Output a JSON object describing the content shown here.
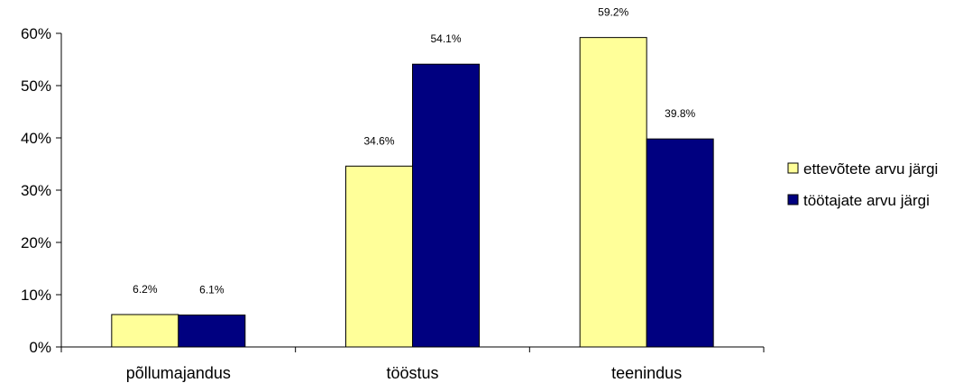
{
  "chart_data": {
    "type": "bar",
    "categories": [
      "põllumajandus",
      "tööstus",
      "teenindus"
    ],
    "series": [
      {
        "name": "ettevõtete arvu järgi",
        "values": [
          6.2,
          34.6,
          59.2
        ],
        "labels": [
          "6.2%",
          "34.6%",
          "59.2%"
        ],
        "color": "#ffff99"
      },
      {
        "name": "töötajate arvu järgi",
        "values": [
          6.1,
          54.1,
          39.8
        ],
        "labels": [
          "6.1%",
          "54.1%",
          "39.8%"
        ],
        "color": "#000080"
      }
    ],
    "yticks": [
      "0%",
      "10%",
      "20%",
      "30%",
      "40%",
      "50%",
      "60%"
    ],
    "ylim": [
      0,
      60
    ],
    "grid": false,
    "legend_position": "right"
  }
}
